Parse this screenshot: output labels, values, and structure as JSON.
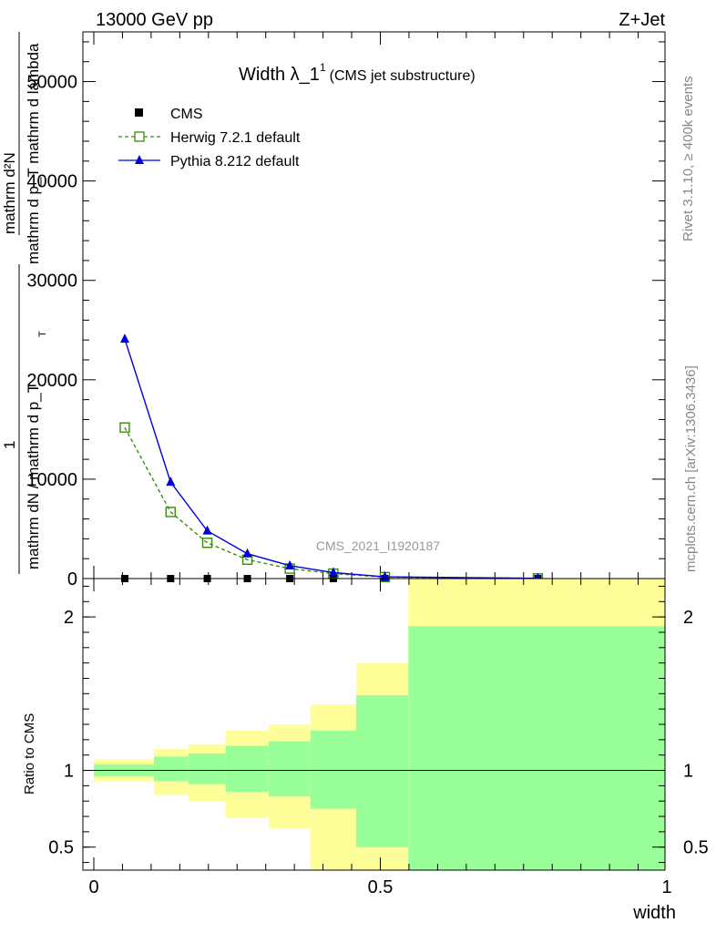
{
  "header": {
    "energy": "13000 GeV pp",
    "process": "Z+Jet"
  },
  "side_labels": {
    "rivet": "Rivet 3.1.10, ≥ 400k events",
    "mcplots": "mcplots.cern.ch [arXiv:1306.3436]"
  },
  "watermark": "CMS_2021_I1920187",
  "colors": {
    "cms": "#000000",
    "herwig": "#3a8c0a",
    "pythia": "#0000dd",
    "band_outer": "#ffff99",
    "band_inner": "#99ff99"
  },
  "chart_data": [
    {
      "type": "line",
      "title": "Width λ_1",
      "title_sup": "1",
      "subtitle": "(CMS jet substructure)",
      "ylabel_top": "mathrm d²N",
      "ylabel_top_den": "mathrm d p_T mathrm d lambda",
      "ylabel_frac_num": "1",
      "ylabel_frac_den": "mathrm dN / mathrm d p_T",
      "ylabel_sub": "T",
      "ylim": [
        0,
        55000
      ],
      "yticks": [
        {
          "v": 0,
          "label": "0"
        },
        {
          "v": 10000,
          "label": "10000"
        },
        {
          "v": 20000,
          "label": "20000"
        },
        {
          "v": 30000,
          "label": "30000"
        },
        {
          "v": 40000,
          "label": "40000"
        },
        {
          "v": 50000,
          "label": "50000"
        }
      ],
      "xlim": [
        0,
        1
      ],
      "legend_position": "top-left",
      "series": [
        {
          "name": "CMS",
          "marker": "square-filled",
          "x": [
            0.054,
            0.134,
            0.198,
            0.268,
            0.342,
            0.418,
            0.508,
            0.775
          ],
          "y": [
            0,
            0,
            0,
            0,
            0,
            0,
            0,
            0
          ]
        },
        {
          "name": "Herwig 7.2.1 default",
          "marker": "square-open",
          "dashed": true,
          "x": [
            0.054,
            0.134,
            0.198,
            0.268,
            0.342,
            0.418,
            0.508,
            0.775
          ],
          "y": [
            15200,
            6700,
            3600,
            1900,
            1000,
            500,
            150,
            20
          ]
        },
        {
          "name": "Pythia 8.212 default",
          "marker": "triangle-filled",
          "x": [
            0.054,
            0.134,
            0.198,
            0.268,
            0.342,
            0.418,
            0.508,
            0.775
          ],
          "y": [
            24100,
            9700,
            4800,
            2500,
            1300,
            600,
            180,
            25
          ]
        }
      ]
    },
    {
      "type": "area",
      "ylabel": "Ratio to CMS",
      "xlabel": "width",
      "xlim": [
        0,
        1
      ],
      "ylim": [
        0.35,
        2.25
      ],
      "xticks": [
        {
          "v": 0,
          "label": "0"
        },
        {
          "v": 0.5,
          "label": "0.5"
        },
        {
          "v": 1,
          "label": "1"
        }
      ],
      "yticks": [
        {
          "v": 0.5,
          "label": "0.5"
        },
        {
          "v": 1,
          "label": "1"
        },
        {
          "v": 2,
          "label": "2"
        }
      ],
      "bins": [
        {
          "x0": 0.0,
          "x1": 0.105,
          "inner_lo": 0.96,
          "inner_hi": 1.04,
          "outer_lo": 0.93,
          "outer_hi": 1.07
        },
        {
          "x0": 0.105,
          "x1": 0.165,
          "inner_lo": 0.93,
          "inner_hi": 1.09,
          "outer_lo": 0.84,
          "outer_hi": 1.14
        },
        {
          "x0": 0.165,
          "x1": 0.23,
          "inner_lo": 0.91,
          "inner_hi": 1.11,
          "outer_lo": 0.8,
          "outer_hi": 1.17
        },
        {
          "x0": 0.23,
          "x1": 0.305,
          "inner_lo": 0.86,
          "inner_hi": 1.16,
          "outer_lo": 0.69,
          "outer_hi": 1.26
        },
        {
          "x0": 0.305,
          "x1": 0.378,
          "inner_lo": 0.83,
          "inner_hi": 1.19,
          "outer_lo": 0.62,
          "outer_hi": 1.3
        },
        {
          "x0": 0.378,
          "x1": 0.458,
          "inner_lo": 0.75,
          "inner_hi": 1.26,
          "outer_lo": 0.35,
          "outer_hi": 1.43
        },
        {
          "x0": 0.458,
          "x1": 0.549,
          "inner_lo": 0.5,
          "inner_hi": 1.49,
          "outer_lo": 0.35,
          "outer_hi": 1.7
        },
        {
          "x0": 0.549,
          "x1": 1.0,
          "inner_lo": 0.35,
          "inner_hi": 1.94,
          "outer_lo": 0.35,
          "outer_hi": 2.25
        }
      ],
      "reference_line": 1
    }
  ]
}
